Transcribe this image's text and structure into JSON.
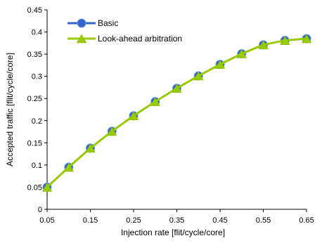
{
  "chart_data": {
    "type": "line",
    "title": "",
    "xlabel": "Injection rate [flit/cycle/core]",
    "ylabel": "Accepted traffic [flit/cycle/core]",
    "x_tick_labels": [
      "0.05",
      "0.15",
      "0.25",
      "0.35",
      "0.45",
      "0.55",
      "0.65"
    ],
    "y_tick_labels": [
      "0",
      "0.05",
      "0.1",
      "0.15",
      "0.2",
      "0.25",
      "0.3",
      "0.35",
      "0.4",
      "0.45"
    ],
    "xlim": [
      0.05,
      0.65
    ],
    "ylim": [
      0,
      0.45
    ],
    "grid": false,
    "legend_position": "top-left",
    "x": [
      0.05,
      0.1,
      0.15,
      0.2,
      0.25,
      0.3,
      0.35,
      0.4,
      0.45,
      0.5,
      0.55,
      0.6,
      0.65
    ],
    "series": [
      {
        "name": "Basic",
        "marker": "circle",
        "color": "#3366cc",
        "values": [
          0.05,
          0.095,
          0.138,
          0.176,
          0.211,
          0.243,
          0.273,
          0.301,
          0.327,
          0.351,
          0.371,
          0.381,
          0.385
        ]
      },
      {
        "name": "Look-ahead arbitration",
        "marker": "triangle",
        "color": "#99cc00",
        "values": [
          0.05,
          0.095,
          0.138,
          0.176,
          0.211,
          0.243,
          0.273,
          0.301,
          0.327,
          0.351,
          0.371,
          0.381,
          0.385
        ]
      }
    ]
  }
}
